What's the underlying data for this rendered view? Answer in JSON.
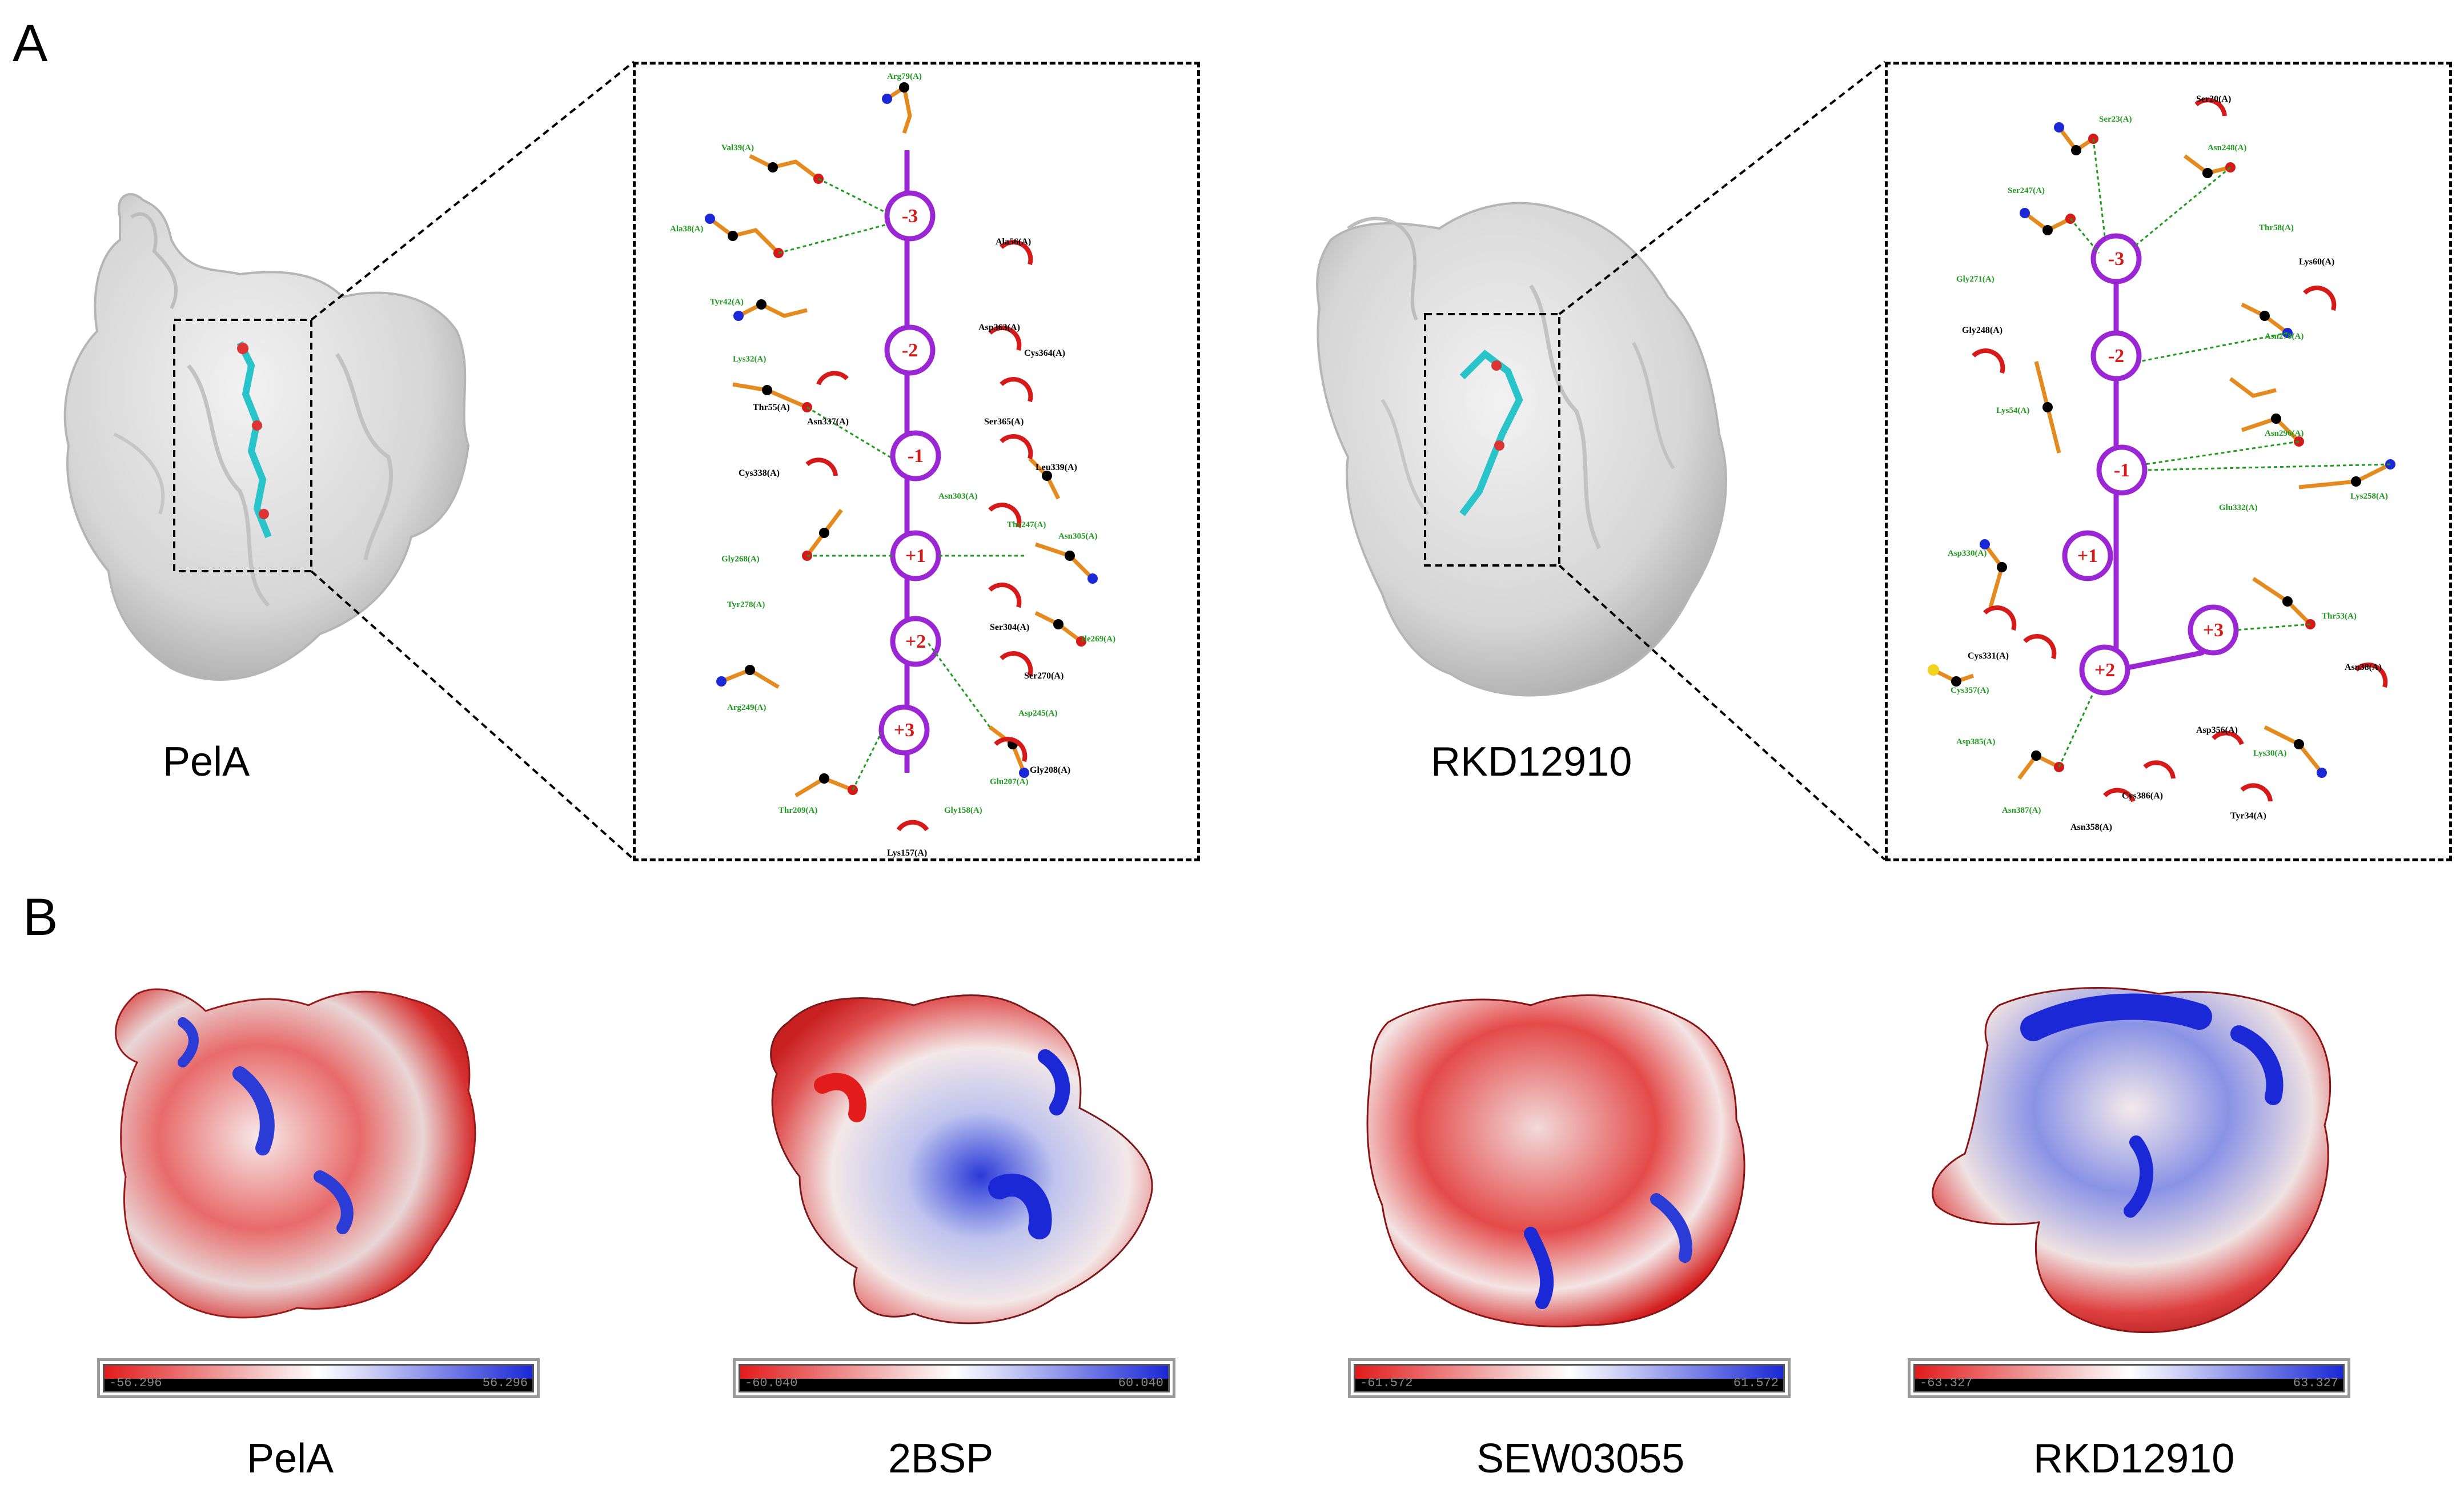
{
  "panels": {
    "A": {
      "letter": "A",
      "proteins": [
        {
          "name": "PelA",
          "subsites": [
            "-3",
            "-2",
            "-1",
            "+1",
            "+2",
            "+3"
          ],
          "hbond_residues": [
            "Arg79(A)",
            "Val39(A)",
            "Ala38(A)",
            "Tyr42(A)",
            "Lys32(A)",
            "Asn303(A)",
            "Thr247(A)",
            "Asn305(A)",
            "Gly268(A)",
            "Tyr278(A)",
            "Ile269(A)",
            "Arg249(A)",
            "Asp245(A)",
            "Glu207(A)",
            "Thr209(A)",
            "Gly158(A)"
          ],
          "hydrophobic_residues": [
            "Ala56(A)",
            "Asp363(A)",
            "Cys364(A)",
            "Thr55(A)",
            "Asn337(A)",
            "Ser365(A)",
            "Cys338(A)",
            "Leu339(A)",
            "Ser304(A)",
            "Ser270(A)",
            "Gly208(A)",
            "Lys157(A)"
          ]
        },
        {
          "name": "RKD12910",
          "subsites": [
            "-3",
            "-2",
            "-1",
            "+1",
            "+2",
            "+3"
          ],
          "hbond_residues": [
            "Ser23(A)",
            "Asn248(A)",
            "Ser247(A)",
            "Thr58(A)",
            "Gly271(A)",
            "Asn278(A)",
            "Lys54(A)",
            "Asn296(A)",
            "Lys258(A)",
            "Glu332(A)",
            "Asp330(A)",
            "Thr53(A)",
            "Cys357(A)",
            "Asp385(A)",
            "Asn387(A)",
            "Lys30(A)"
          ],
          "hydrophobic_residues": [
            "Ser20(A)",
            "Lys60(A)",
            "Gly248(A)",
            "Cys331(A)",
            "Asn38(A)",
            "Asp356(A)",
            "Cys386(A)",
            "Asn358(A)",
            "Tyr34(A)"
          ]
        }
      ]
    },
    "B": {
      "letter": "B",
      "proteins": [
        {
          "name": "PelA",
          "min_label": "-56.296",
          "max_label": "56.296"
        },
        {
          "name": "2BSP",
          "min_label": "-60.040",
          "max_label": "60.040"
        },
        {
          "name": "SEW03055",
          "min_label": "-61.572",
          "max_label": "61.572"
        },
        {
          "name": "RKD12910",
          "min_label": "-63.327",
          "max_label": "63.327"
        }
      ]
    }
  },
  "colors": {
    "surface_grey": "#d9d9d9",
    "ligand_cyan": "#29c4c9",
    "sugar_ring": "#9b26d4",
    "residue_bond": "#e58a1e",
    "hbond": "#1f9a1f",
    "hydrophobic_arc": "#d61a1a",
    "esp_negative": "#e21b1b",
    "esp_positive": "#1a28d6"
  }
}
